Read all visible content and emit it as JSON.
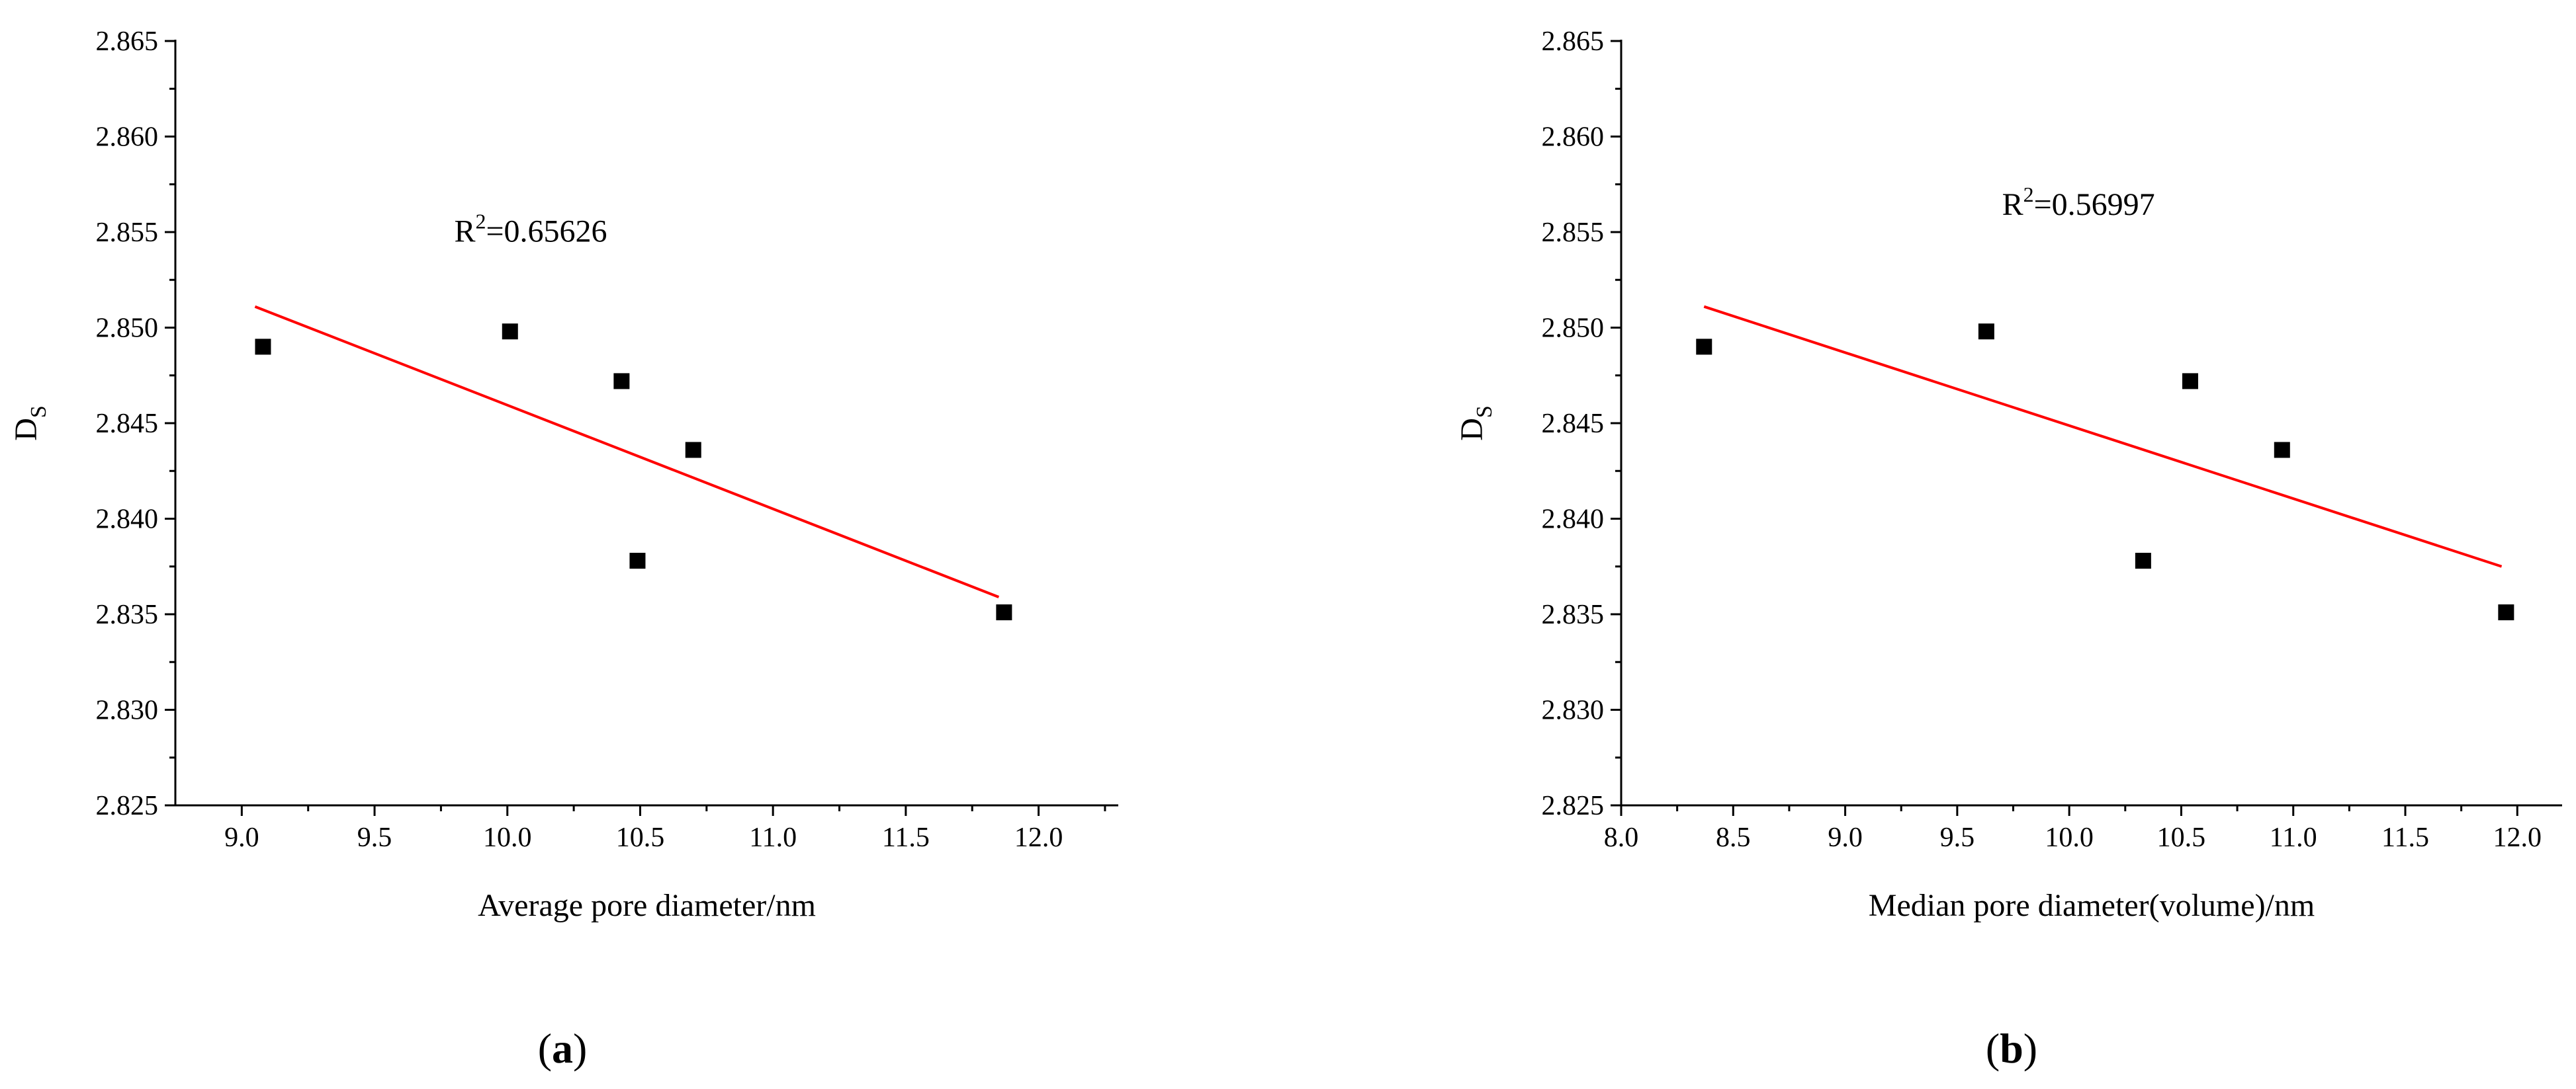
{
  "chart_data": [
    {
      "type": "scatter",
      "panel_label": "(a)",
      "panel_letter": "a",
      "xlabel": "Average pore diameter/nm",
      "ylabel_main": "D",
      "ylabel_sub": "S",
      "xlim": [
        8.75,
        12.3
      ],
      "ylim": [
        2.825,
        2.865
      ],
      "xticks": [
        "9.0",
        "9.5",
        "10.0",
        "10.5",
        "11.0",
        "11.5",
        "12.0"
      ],
      "yticks": [
        "2.825",
        "2.830",
        "2.835",
        "2.840",
        "2.845",
        "2.850",
        "2.855",
        "2.860",
        "2.865"
      ],
      "annotation": {
        "prefix": "R",
        "sup": "2",
        "suffix": "=0.65626",
        "x": 9.8,
        "y": 2.8545
      },
      "points": [
        {
          "x": 9.08,
          "y": 2.849
        },
        {
          "x": 10.01,
          "y": 2.8498
        },
        {
          "x": 10.43,
          "y": 2.8472
        },
        {
          "x": 10.7,
          "y": 2.8436
        },
        {
          "x": 10.49,
          "y": 2.8378
        },
        {
          "x": 11.87,
          "y": 2.8351
        }
      ],
      "fit_line": [
        {
          "x": 9.05,
          "y": 2.8511
        },
        {
          "x": 11.85,
          "y": 2.8359
        }
      ],
      "line_color": "#ff0000",
      "marker_color": "#000000"
    },
    {
      "type": "scatter",
      "panel_label": "(b)",
      "panel_letter": "b",
      "xlabel": "Median pore diameter(volume)/nm",
      "ylabel_main": "D",
      "ylabel_sub": "S",
      "xlim": [
        8.0,
        12.2
      ],
      "ylim": [
        2.825,
        2.865
      ],
      "xticks": [
        "8.0",
        "8.5",
        "9.0",
        "9.5",
        "10.0",
        "10.5",
        "11.0",
        "11.5",
        "12.0"
      ],
      "yticks": [
        "2.825",
        "2.830",
        "2.835",
        "2.840",
        "2.845",
        "2.850",
        "2.855",
        "2.860",
        "2.865"
      ],
      "annotation": {
        "prefix": "R",
        "sup": "2",
        "suffix": "=0.56997",
        "x": 9.7,
        "y": 2.8559
      },
      "points": [
        {
          "x": 8.37,
          "y": 2.849
        },
        {
          "x": 9.63,
          "y": 2.8498
        },
        {
          "x": 10.54,
          "y": 2.8472
        },
        {
          "x": 10.95,
          "y": 2.8436
        },
        {
          "x": 10.33,
          "y": 2.8378
        },
        {
          "x": 11.95,
          "y": 2.8351
        }
      ],
      "fit_line": [
        {
          "x": 8.37,
          "y": 2.8511
        },
        {
          "x": 11.93,
          "y": 2.8375
        }
      ],
      "line_color": "#ff0000",
      "marker_color": "#000000"
    }
  ]
}
